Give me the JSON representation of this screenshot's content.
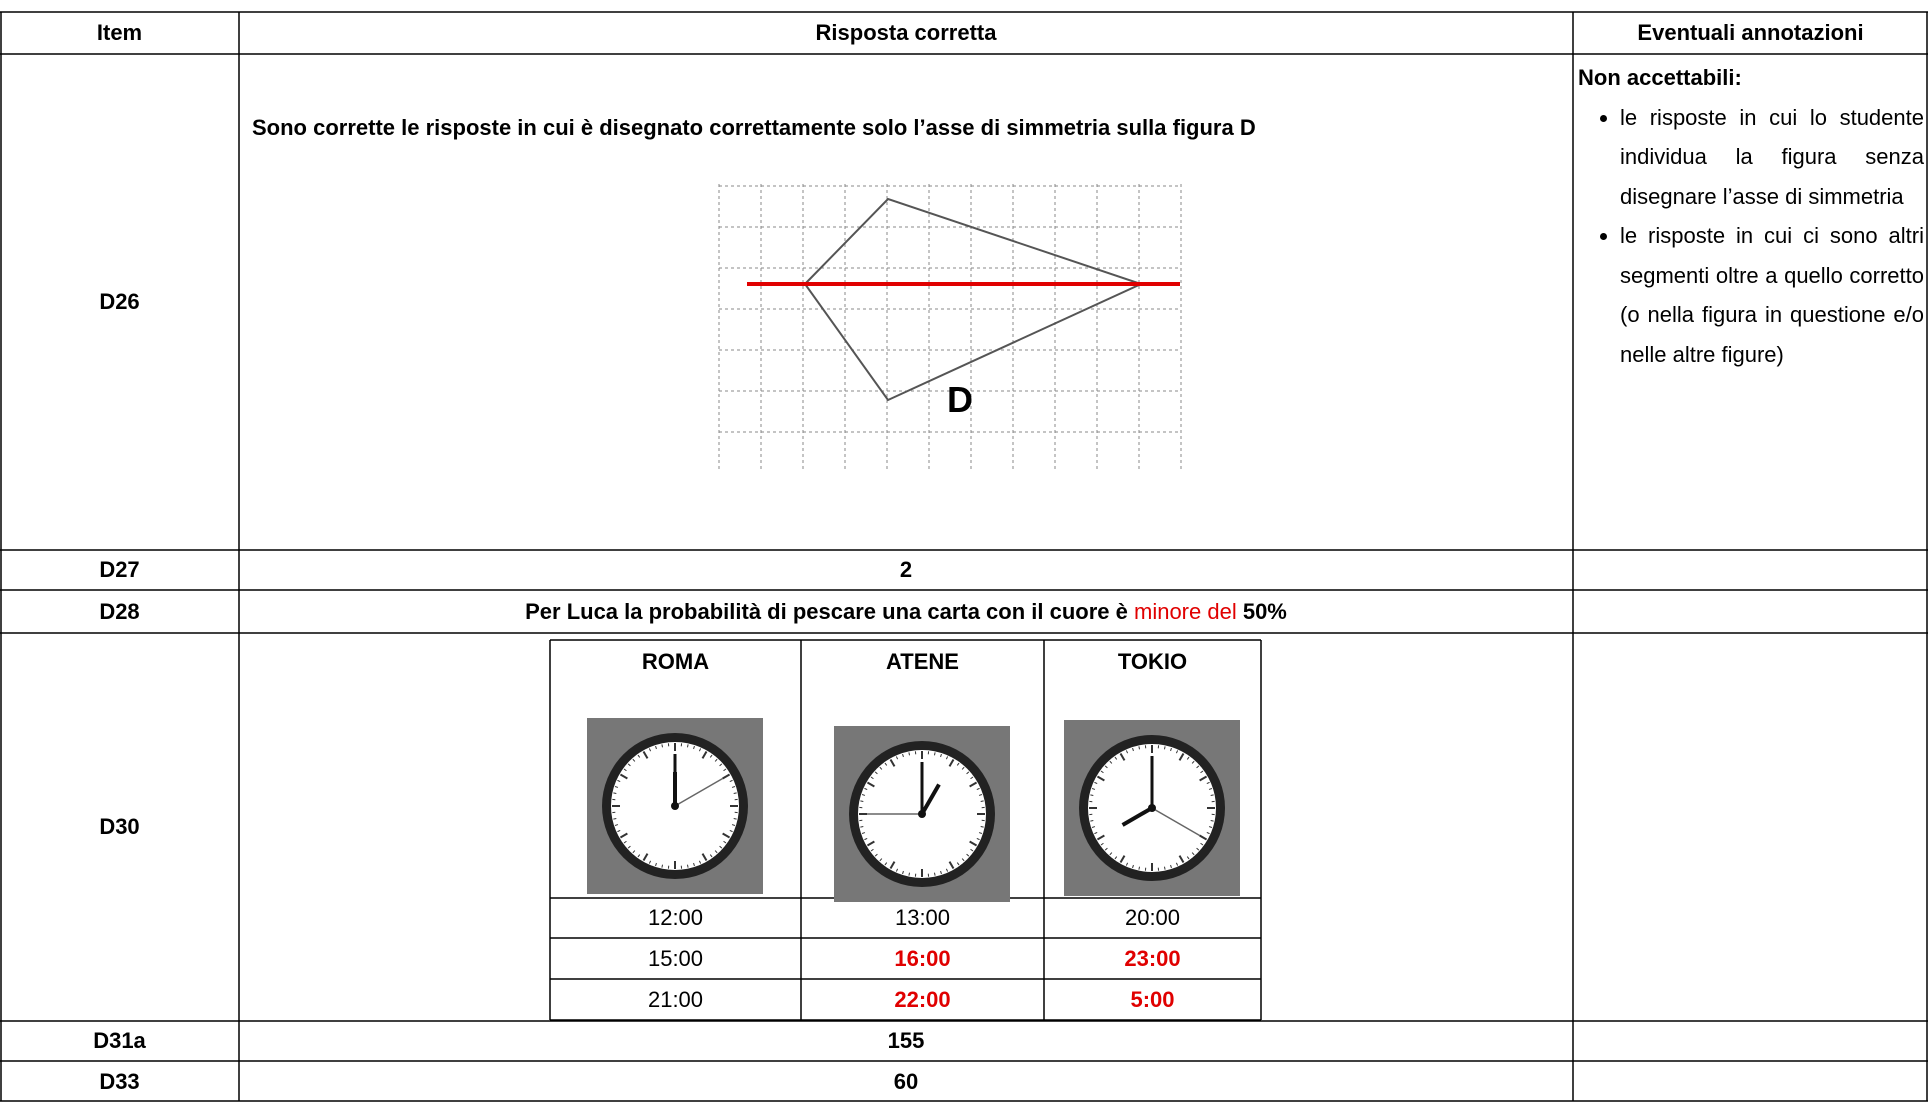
{
  "header": {
    "item": "Item",
    "answer": "Risposta corretta",
    "notes": "Eventuali annotazioni"
  },
  "rows": [
    {
      "item": "D26",
      "answer": "Sono corrette le risposte in cui è disegnato correttamente solo l’asse di simmetria sulla figura D",
      "figure_label": "D",
      "notes": {
        "title": "Non accettabili:",
        "bullets": [
          "le risposte in cui lo studente individua la figura senza disegnare l’asse di simmetria",
          "le risposte in cui ci sono altri segmenti oltre a quello corretto (o nella figura in questione e/o nelle altre figure)"
        ]
      }
    },
    {
      "item": "D27",
      "answer": "2"
    },
    {
      "item": "D28",
      "answer": [
        "Per Luca la probabilità di pescare una carta con il cuore è ",
        "minore del",
        " 50%"
      ]
    },
    {
      "item": "D30",
      "clock_table": {
        "headers": [
          "ROMA",
          "ATENE",
          "TOKIO"
        ],
        "rows": [
          [
            {
              "text": "12:00",
              "color": "#000000"
            },
            {
              "text": "13:00",
              "color": "#000000"
            },
            {
              "text": "20:00",
              "color": "#000000"
            }
          ],
          [
            {
              "text": "15:00",
              "color": "#000000"
            },
            {
              "text": "16:00",
              "color": "#e00000"
            },
            {
              "text": "23:00",
              "color": "#e00000"
            }
          ],
          [
            {
              "text": "21:00",
              "color": "#000000"
            },
            {
              "text": "22:00",
              "color": "#e00000"
            },
            {
              "text": "5:00",
              "color": "#e00000"
            }
          ]
        ]
      }
    },
    {
      "item": "D31a",
      "answer": "155"
    },
    {
      "item": "D33",
      "answer": "60"
    }
  ]
}
